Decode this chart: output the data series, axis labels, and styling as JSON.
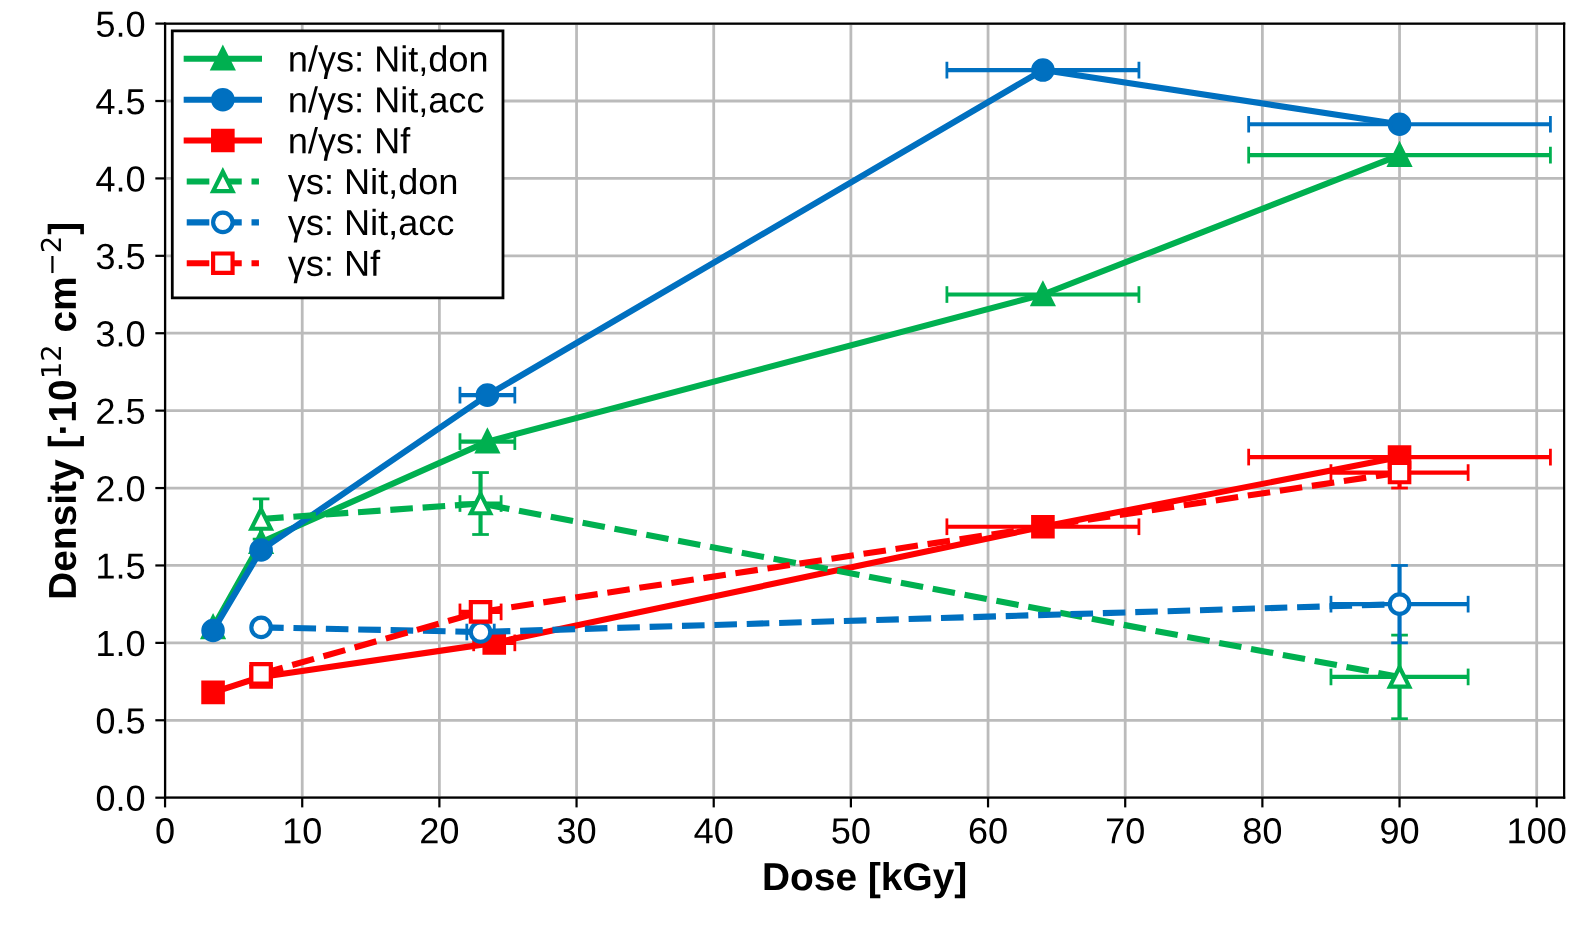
{
  "chart_data": {
    "type": "line",
    "xlabel": "Dose [kGy]",
    "ylabel": "Density [·10$^{12}$ cm$^{−2}$]",
    "xlim": [
      0,
      102
    ],
    "xticks": [
      0,
      10,
      20,
      30,
      40,
      50,
      60,
      70,
      80,
      90,
      100
    ],
    "ylim": [
      0,
      5
    ],
    "yticks": [
      {
        "value": 0,
        "label": "0.0"
      },
      {
        "value": 0.5,
        "label": "0.5"
      },
      {
        "value": 1,
        "label": "1.0"
      },
      {
        "value": 1.5,
        "label": "1.5"
      },
      {
        "value": 2,
        "label": "2.0"
      },
      {
        "value": 2.5,
        "label": "2.5"
      },
      {
        "value": 3,
        "label": "3.0"
      },
      {
        "value": 3.5,
        "label": "3.5"
      },
      {
        "value": 4,
        "label": "4.0"
      },
      {
        "value": 4.5,
        "label": "4.5"
      },
      {
        "value": 5,
        "label": "5.0"
      }
    ],
    "grid": true,
    "legend": "top left",
    "series": [
      {
        "name": "n/γs: Nit,don",
        "color": "#00b050",
        "marker": "triangle",
        "line_style": "solid",
        "x": [
          3.5,
          7,
          23.5,
          64,
          90
        ],
        "values": [
          1.1,
          1.65,
          2.3,
          3.25,
          4.15
        ],
        "xerrors": [
          null,
          null,
          2,
          7,
          11
        ]
      },
      {
        "name": "n/γs: Nit,acc",
        "color": "#0070c0",
        "marker": "circle",
        "line_style": "solid",
        "x": [
          3.5,
          7,
          23.5,
          64,
          90
        ],
        "values": [
          1.08,
          1.6,
          2.6,
          4.7,
          4.35
        ],
        "xerrors": [
          null,
          null,
          2,
          7,
          11
        ]
      },
      {
        "name": "n/γs: Nf",
        "color": "#ff0000",
        "marker": "square",
        "line_style": "solid",
        "x": [
          3.5,
          7,
          24,
          64,
          90
        ],
        "values": [
          0.68,
          0.78,
          1.0,
          1.75,
          2.2
        ],
        "xerrors": [
          null,
          null,
          1.5,
          7,
          11
        ]
      },
      {
        "name": "γs: Nit,don",
        "color": "#00b050",
        "marker": "triangle",
        "line_style": "dashed",
        "x": [
          7,
          23,
          90
        ],
        "values": [
          1.8,
          1.9,
          0.78
        ],
        "errors": [
          0.13,
          0.2,
          0.27
        ],
        "xerrors": [
          null,
          1.5,
          5
        ]
      },
      {
        "name": "γs: Nit,acc",
        "color": "#0070c0",
        "marker": "circle",
        "line_style": "dashed",
        "x": [
          7,
          23,
          90
        ],
        "values": [
          1.1,
          1.07,
          1.25
        ],
        "errors": [
          null,
          null,
          0.25
        ],
        "xerrors": [
          null,
          1,
          5
        ]
      },
      {
        "name": "γs: Nf",
        "color": "#ff0000",
        "marker": "square",
        "line_style": "dashed",
        "x": [
          7,
          23,
          90
        ],
        "values": [
          0.8,
          1.2,
          2.1
        ],
        "errors": [
          null,
          null,
          0.1
        ],
        "xerrors": [
          null,
          1.5,
          5
        ]
      }
    ]
  }
}
